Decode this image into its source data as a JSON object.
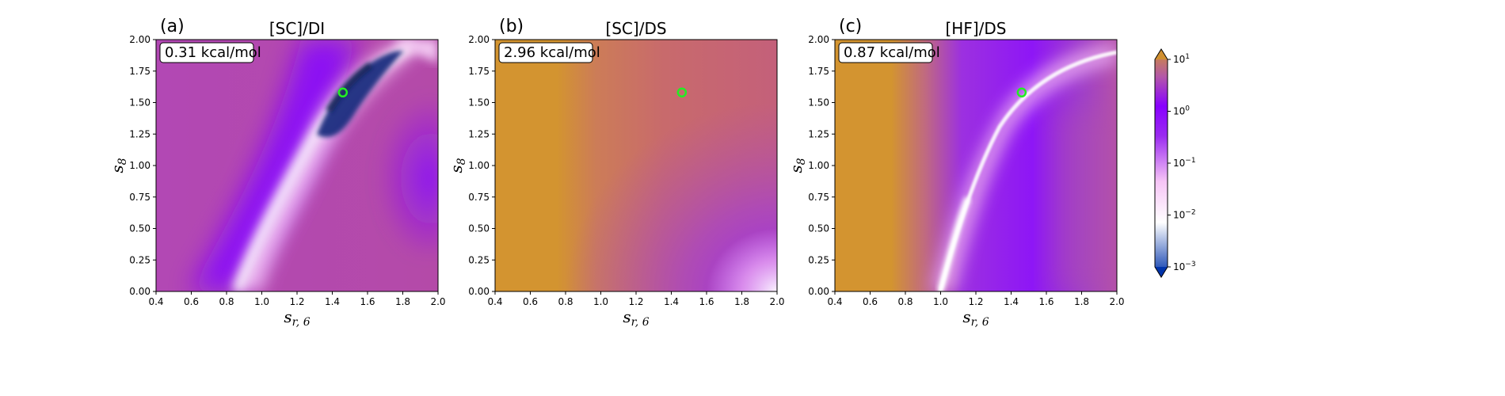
{
  "chart_data": [
    {
      "type": "heatmap",
      "panel_label": "(a)",
      "title": "[SC]/DI",
      "xlabel": "s",
      "xlabel_sub": "r, 6",
      "ylabel": "s",
      "ylabel_sub": "8",
      "xlim": [
        0.4,
        2.0
      ],
      "ylim": [
        0.0,
        2.0
      ],
      "xticks": [
        "0.4",
        "0.6",
        "0.8",
        "1.0",
        "1.2",
        "1.4",
        "1.6",
        "1.8",
        "2.0"
      ],
      "yticks": [
        "0.00",
        "0.25",
        "0.50",
        "0.75",
        "1.00",
        "1.25",
        "1.50",
        "1.75",
        "2.00"
      ],
      "annotation": "0.31 kcal/mol",
      "marker": {
        "x": 1.46,
        "y": 1.58,
        "color": "#22ee22"
      }
    },
    {
      "type": "heatmap",
      "panel_label": "(b)",
      "title": "[SC]/DS",
      "xlabel": "s",
      "xlabel_sub": "r, 6",
      "ylabel": "s",
      "ylabel_sub": "8",
      "xlim": [
        0.4,
        2.0
      ],
      "ylim": [
        0.0,
        2.0
      ],
      "xticks": [
        "0.4",
        "0.6",
        "0.8",
        "1.0",
        "1.2",
        "1.4",
        "1.6",
        "1.8",
        "2.0"
      ],
      "yticks": [
        "0.00",
        "0.25",
        "0.50",
        "0.75",
        "1.00",
        "1.25",
        "1.50",
        "1.75",
        "2.00"
      ],
      "annotation": "2.96 kcal/mol",
      "marker": {
        "x": 1.46,
        "y": 1.58,
        "color": "#22ee22"
      }
    },
    {
      "type": "heatmap",
      "panel_label": "(c)",
      "title": "[HF]/DS",
      "xlabel": "s",
      "xlabel_sub": "r, 6",
      "ylabel": "s",
      "ylabel_sub": "8",
      "xlim": [
        0.4,
        2.0
      ],
      "ylim": [
        0.0,
        2.0
      ],
      "xticks": [
        "0.4",
        "0.6",
        "0.8",
        "1.0",
        "1.2",
        "1.4",
        "1.6",
        "1.8",
        "2.0"
      ],
      "yticks": [
        "0.00",
        "0.25",
        "0.50",
        "0.75",
        "1.00",
        "1.25",
        "1.50",
        "1.75",
        "2.00"
      ],
      "annotation": "0.87 kcal/mol",
      "marker": {
        "x": 1.46,
        "y": 1.58,
        "color": "#22ee22"
      }
    }
  ],
  "colorbar": {
    "scale": "log",
    "range": [
      0.001,
      10
    ],
    "ticks": [
      {
        "base": "10",
        "exp": "1",
        "value": 10
      },
      {
        "base": "10",
        "exp": "0",
        "value": 1
      },
      {
        "base": "10",
        "exp": "−1",
        "value": 0.1
      },
      {
        "base": "10",
        "exp": "−2",
        "value": 0.01
      },
      {
        "base": "10",
        "exp": "−3",
        "value": 0.001
      }
    ],
    "colors": [
      "#0033aa",
      "#ffffff",
      "#f6c4f6",
      "#8800ff",
      "#b040c0",
      "#d09030"
    ],
    "extend": "both"
  }
}
